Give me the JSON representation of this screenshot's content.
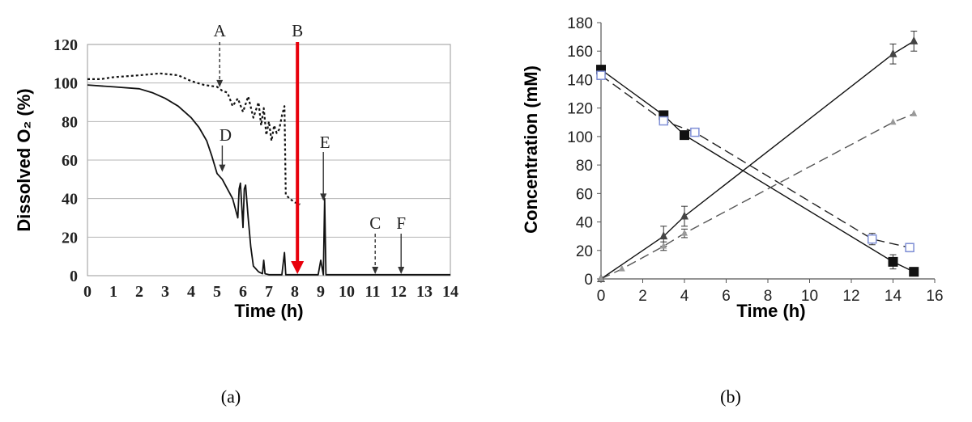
{
  "chart_data": [
    {
      "type": "line",
      "panel_label": "(a)",
      "xlabel": "Time (h)",
      "ylabel": "Dissolved O₂ (%)",
      "xlim": [
        0,
        14
      ],
      "ylim": [
        0,
        120
      ],
      "x_ticks": [
        "0",
        "1",
        "2",
        "3",
        "4",
        "5",
        "6",
        "7",
        "8",
        "9",
        "10",
        "11",
        "12",
        "13",
        "14"
      ],
      "y_ticks": [
        "0",
        "20",
        "40",
        "60",
        "80",
        "100",
        "120"
      ],
      "grid": true,
      "series": [
        {
          "style": "dotted",
          "x": [
            0,
            0.5,
            1,
            2,
            2.8,
            3.5,
            4,
            4.5,
            5,
            5.2,
            5.4,
            5.6,
            5.8,
            6,
            6.2,
            6.4,
            6.6,
            6.7,
            6.8,
            6.9,
            7,
            7.1,
            7.2,
            7.3,
            7.4,
            7.5,
            7.6,
            7.65,
            7.8,
            8,
            8.2
          ],
          "y": [
            102,
            102,
            103,
            104,
            105,
            104,
            101,
            99,
            98,
            96,
            95,
            88,
            92,
            85,
            93,
            82,
            90,
            78,
            87,
            73,
            80,
            70,
            78,
            74,
            76,
            83,
            88,
            42,
            40,
            38,
            37
          ]
        },
        {
          "style": "solid",
          "x": [
            0,
            1,
            2,
            2.5,
            3,
            3.5,
            4,
            4.3,
            4.6,
            4.8,
            5,
            5.2,
            5.4,
            5.6,
            5.8,
            5.85,
            5.9,
            6.0,
            6.05,
            6.1,
            6.2,
            6.3,
            6.4,
            6.6,
            6.75,
            6.8,
            6.85,
            7.0,
            7.5,
            7.6,
            7.65,
            7.7,
            8.5,
            8.9,
            9.0,
            9.1,
            9.15,
            9.2,
            9.3,
            10,
            12,
            14
          ],
          "y": [
            99,
            98,
            97,
            95,
            92,
            88,
            82,
            77,
            70,
            62,
            53,
            50,
            45,
            40,
            30,
            45,
            48,
            25,
            45,
            47,
            30,
            15,
            5,
            2,
            1,
            8,
            1,
            0.5,
            0.5,
            12,
            0.5,
            0.5,
            0.5,
            0.5,
            8,
            0.5,
            40,
            0.5,
            0.5,
            0.5,
            0.5,
            0.5
          ]
        }
      ],
      "annotations": [
        {
          "label": "A",
          "x": 5.1,
          "y": 97,
          "style": "dashed-arrow"
        },
        {
          "label": "B",
          "x": 8.1,
          "y": 0,
          "style": "red-arrow"
        },
        {
          "label": "C",
          "x": 11.1,
          "y": 0,
          "style": "dashed-arrow"
        },
        {
          "label": "D",
          "x": 5.2,
          "y": 53,
          "style": "solid-arrow"
        },
        {
          "label": "E",
          "x": 9.1,
          "y": 38,
          "style": "solid-arrow"
        },
        {
          "label": "F",
          "x": 12.1,
          "y": 0,
          "style": "solid-arrow"
        }
      ]
    },
    {
      "type": "line",
      "panel_label": "(b)",
      "xlabel": "Time (h)",
      "ylabel": "Concentration (mM)",
      "xlim": [
        0,
        16
      ],
      "ylim": [
        0,
        180
      ],
      "x_ticks": [
        "0",
        "2",
        "4",
        "6",
        "8",
        "10",
        "12",
        "14",
        "16"
      ],
      "y_ticks": [
        "0",
        "20",
        "40",
        "60",
        "80",
        "100",
        "120",
        "140",
        "160",
        "180"
      ],
      "grid": false,
      "series": [
        {
          "marker": "filled-square",
          "line": "solid",
          "x": [
            0,
            3,
            4,
            14,
            15
          ],
          "y": [
            147,
            115,
            101,
            12,
            5
          ],
          "err": [
            0,
            2,
            2,
            5,
            3
          ]
        },
        {
          "marker": "open-square",
          "line": "dashed",
          "x": [
            0,
            3,
            4.5,
            13,
            14.8
          ],
          "y": [
            143,
            111,
            103,
            28,
            22
          ],
          "err": [
            0,
            2,
            2,
            4,
            3
          ]
        },
        {
          "marker": "filled-triangle",
          "line": "solid",
          "x": [
            0,
            3,
            4,
            14,
            15
          ],
          "y": [
            0,
            30,
            44,
            158,
            167
          ],
          "err": [
            0,
            7,
            7,
            7,
            7
          ]
        },
        {
          "marker": "gray-triangle",
          "line": "dashed",
          "x": [
            0,
            1,
            3,
            4,
            14,
            15
          ],
          "y": [
            0,
            7,
            23,
            32,
            110,
            116
          ],
          "err": [
            0,
            0,
            3,
            3,
            0,
            0
          ]
        }
      ]
    }
  ]
}
